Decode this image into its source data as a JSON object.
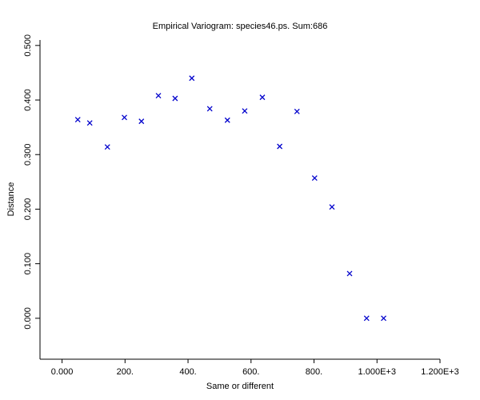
{
  "chart_data": {
    "type": "scatter",
    "title": "Empirical Variogram: species46.ps. Sum:686",
    "xlabel": "Same or different",
    "ylabel": "Distance",
    "xlim": [
      -70,
      1200
    ],
    "ylim": [
      -0.075,
      0.51
    ],
    "x_ticks": [
      0,
      200,
      400,
      600,
      800,
      1000,
      1200
    ],
    "x_tick_labels": [
      "0.000",
      "200.",
      "400.",
      "600.",
      "800.",
      "1.000E+3",
      "1.200E+3"
    ],
    "y_ticks": [
      0.0,
      0.1,
      0.2,
      0.3,
      0.4,
      0.5
    ],
    "y_tick_labels": [
      "0.000",
      "0.100",
      "0.200",
      "0.300",
      "0.400",
      "0.500"
    ],
    "marker": "x",
    "color": "#0000cc",
    "grid": false,
    "legend": "none",
    "series": [
      {
        "x": [
          50,
          88,
          144,
          198,
          252,
          306,
          359,
          412,
          469,
          525,
          580,
          636,
          691,
          746,
          802,
          857,
          913,
          967,
          1021
        ],
        "y": [
          0.364,
          0.358,
          0.314,
          0.368,
          0.361,
          0.408,
          0.403,
          0.44,
          0.384,
          0.363,
          0.38,
          0.405,
          0.315,
          0.379,
          0.257,
          0.204,
          0.082,
          0.0,
          0.0
        ]
      }
    ]
  }
}
